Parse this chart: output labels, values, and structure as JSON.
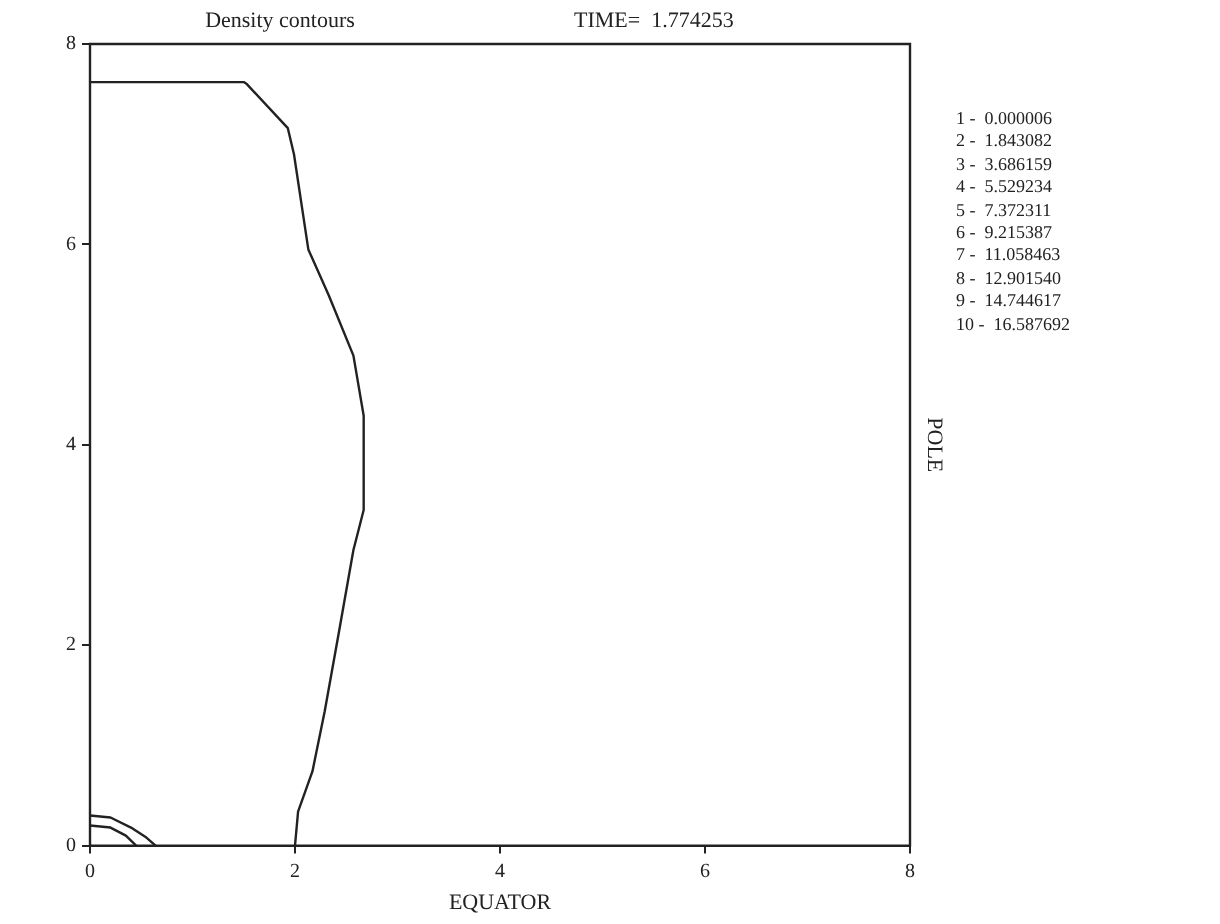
{
  "chart_data": {
    "type": "line",
    "title": "Density contours",
    "subtitle": "TIME=  1.774253",
    "xlabel": "EQUATOR",
    "ylabel": "POLE",
    "xlim": [
      0,
      8
    ],
    "ylim": [
      0,
      8
    ],
    "xticks": [
      0,
      2,
      4,
      6,
      8
    ],
    "yticks": [
      0,
      2,
      4,
      6,
      8
    ],
    "series": [
      {
        "color": "#222222",
        "x": [
          0,
          1.5,
          1.53,
          1.93,
          1.99,
          2.13,
          2.33,
          2.57,
          2.67,
          2.67,
          2.57,
          2.43,
          2.29,
          2.17,
          2.03,
          2.0
        ],
        "values": [
          7.62,
          7.62,
          7.6,
          7.16,
          6.9,
          5.95,
          5.49,
          4.89,
          4.29,
          3.35,
          2.95,
          2.14,
          1.34,
          0.74,
          0.34,
          0
        ]
      },
      {
        "color": "#222222",
        "x": [
          0,
          0.2,
          0.4,
          0.55,
          0.64
        ],
        "values": [
          0.3,
          0.28,
          0.18,
          0.08,
          0
        ]
      },
      {
        "color": "#222222",
        "x": [
          0,
          0.2,
          0.35,
          0.45
        ],
        "values": [
          0.2,
          0.18,
          0.1,
          0
        ]
      }
    ],
    "annotations": [
      "1 -  0.000006",
      "2 -  1.843082",
      "3 -  3.686159",
      "4 -  5.529234",
      "5 -  7.372311",
      "6 -  9.215387",
      "7 -  11.058463",
      "8 -  12.901540",
      "9 -  14.744617",
      "10 -  16.587692"
    ]
  }
}
